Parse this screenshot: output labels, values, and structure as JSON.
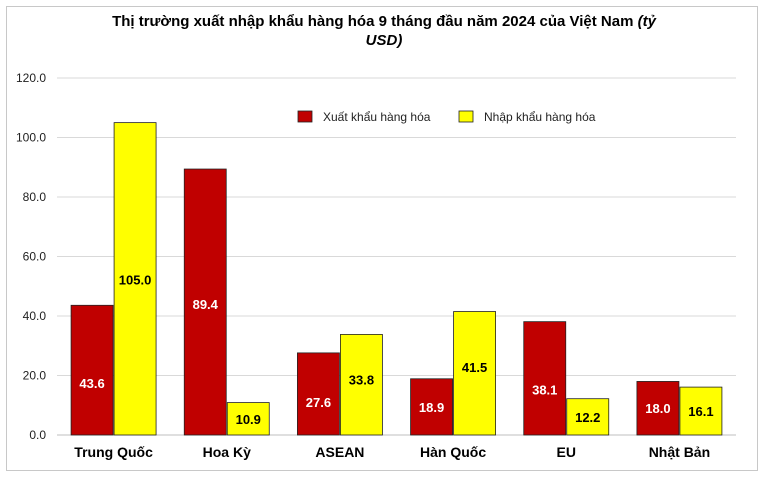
{
  "chart_data": {
    "type": "bar",
    "title": "Thị trường xuất nhập khẩu hàng hóa 9 tháng đầu năm 2024 của Việt Nam",
    "title_unit_line1": "(tỷ",
    "title_unit_line2": "USD)",
    "title_line1": "Thị trường xuất nhập khẩu hàng hóa 9 tháng đầu năm 2024 của Việt Nam",
    "categories": [
      "Trung Quốc",
      "Hoa Kỳ",
      "ASEAN",
      "Hàn Quốc",
      "EU",
      "Nhật Bản"
    ],
    "series": [
      {
        "name": "Xuất khẩu hàng hóa",
        "color": "#c00000",
        "label_color": "#ffffff",
        "values": [
          43.6,
          89.4,
          27.6,
          18.9,
          38.1,
          18.0
        ]
      },
      {
        "name": "Nhập khẩu hàng hóa",
        "color": "#ffff00",
        "label_color": "#000000",
        "values": [
          105.0,
          10.9,
          33.8,
          41.5,
          12.2,
          16.1
        ]
      }
    ],
    "yticks": [
      "0.0",
      "20.0",
      "40.0",
      "60.0",
      "80.0",
      "100.0",
      "120.0"
    ],
    "ylim": [
      0,
      120
    ],
    "grid": true,
    "legend_position": "top-right"
  }
}
